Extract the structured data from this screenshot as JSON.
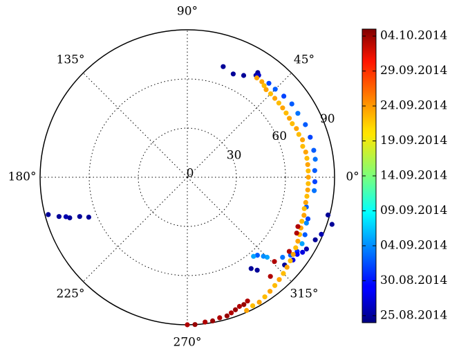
{
  "chart_data": {
    "type": "scatter",
    "projection": "polar",
    "angle_unit": "degrees",
    "theta_tick_labels": [
      "0°",
      "45°",
      "90°",
      "135°",
      "180°",
      "225°",
      "270°",
      "315°"
    ],
    "theta_ticks": [
      0,
      45,
      90,
      135,
      180,
      225,
      270,
      315
    ],
    "r_tick_labels": [
      "0",
      "30",
      "60",
      "90"
    ],
    "r_ticks": [
      0,
      30,
      60,
      90
    ],
    "r_lim": [
      0,
      90
    ],
    "grid": true,
    "colorbar": {
      "colormap": "jet",
      "position": "right",
      "tick_labels": [
        "25.08.2014",
        "30.08.2014",
        "04.09.2014",
        "09.09.2014",
        "14.09.2014",
        "19.09.2014",
        "24.09.2014",
        "29.09.2014",
        "04.10.2014"
      ],
      "tick_values": [
        "2014-08-25",
        "2014-08-30",
        "2014-09-04",
        "2014-09-09",
        "2014-09-14",
        "2014-09-19",
        "2014-09-24",
        "2014-09-29",
        "2014-10-04"
      ],
      "range": [
        "2014-08-24",
        "2014-10-05"
      ]
    },
    "points": [
      {
        "theta": 195,
        "r": 88,
        "date": "2014-08-25"
      },
      {
        "theta": 197,
        "r": 82,
        "date": "2014-08-25"
      },
      {
        "theta": 199,
        "r": 76,
        "date": "2014-08-25"
      },
      {
        "theta": 200,
        "r": 70,
        "date": "2014-08-25"
      },
      {
        "theta": 202,
        "r": 65,
        "date": "2014-08-25"
      },
      {
        "theta": 198,
        "r": 78,
        "date": "2014-08-26"
      },
      {
        "theta": 72,
        "r": 71,
        "date": "2014-08-25"
      },
      {
        "theta": 66,
        "r": 69,
        "date": "2014-08-25"
      },
      {
        "theta": 61,
        "r": 71,
        "date": "2014-08-25"
      },
      {
        "theta": 56,
        "r": 77,
        "date": "2014-08-25"
      },
      {
        "theta": 56,
        "r": 75,
        "date": "2014-08-26"
      },
      {
        "theta": 55,
        "r": 76,
        "date": "2014-08-27"
      },
      {
        "theta": 49,
        "r": 76,
        "date": "2014-09-01"
      },
      {
        "theta": 45,
        "r": 76,
        "date": "2014-09-02"
      },
      {
        "theta": 40,
        "r": 77,
        "date": "2014-09-01"
      },
      {
        "theta": 35,
        "r": 78,
        "date": "2014-09-02"
      },
      {
        "theta": 30,
        "r": 78,
        "date": "2014-09-03"
      },
      {
        "theta": 24,
        "r": 79,
        "date": "2014-09-02"
      },
      {
        "theta": 18,
        "r": 79,
        "date": "2014-09-01"
      },
      {
        "theta": 12,
        "r": 79,
        "date": "2014-09-02"
      },
      {
        "theta": 8,
        "r": 79,
        "date": "2014-09-03"
      },
      {
        "theta": 3,
        "r": 78,
        "date": "2014-09-02"
      },
      {
        "theta": -2,
        "r": 78,
        "date": "2014-09-01"
      },
      {
        "theta": -6,
        "r": 78,
        "date": "2014-09-03"
      },
      {
        "theta": -14,
        "r": 75,
        "date": "2014-09-02"
      },
      {
        "theta": -19,
        "r": 78,
        "date": "2014-09-01"
      },
      {
        "theta": -21,
        "r": 78,
        "date": "2014-09-04"
      },
      {
        "theta": -26,
        "r": 80,
        "date": "2014-09-02"
      },
      {
        "theta": -30,
        "r": 81,
        "date": "2014-09-05"
      },
      {
        "theta": -34,
        "r": 81,
        "date": "2014-08-31"
      },
      {
        "theta": -38,
        "r": 82,
        "date": "2014-08-28"
      },
      {
        "theta": -42,
        "r": 80,
        "date": "2014-08-25"
      },
      {
        "theta": -15,
        "r": 89,
        "date": "2014-08-25"
      },
      {
        "theta": -18,
        "r": 93,
        "date": "2014-08-25"
      },
      {
        "theta": -23,
        "r": 89,
        "date": "2014-08-26"
      },
      {
        "theta": -26,
        "r": 87,
        "date": "2014-08-25"
      },
      {
        "theta": -31,
        "r": 85,
        "date": "2014-08-26"
      },
      {
        "theta": -33,
        "r": 84,
        "date": "2014-08-28"
      },
      {
        "theta": -35,
        "r": 82,
        "date": "2014-08-29"
      },
      {
        "theta": -37,
        "r": 79,
        "date": "2014-09-02"
      },
      {
        "theta": -40,
        "r": 76,
        "date": "2014-09-03"
      },
      {
        "theta": -45,
        "r": 69,
        "date": "2014-09-05"
      },
      {
        "theta": -46,
        "r": 67,
        "date": "2014-09-04"
      },
      {
        "theta": -48,
        "r": 64,
        "date": "2014-09-02"
      },
      {
        "theta": -50,
        "r": 63,
        "date": "2014-09-05"
      },
      {
        "theta": -55,
        "r": 68,
        "date": "2014-08-25"
      },
      {
        "theta": -53,
        "r": 71,
        "date": "2014-08-25"
      },
      {
        "theta": 55,
        "r": 74,
        "date": "2014-09-23"
      },
      {
        "theta": 52,
        "r": 74,
        "date": "2014-09-23"
      },
      {
        "theta": 50,
        "r": 73,
        "date": "2014-09-22"
      },
      {
        "theta": 48,
        "r": 72,
        "date": "2014-09-23"
      },
      {
        "theta": 45,
        "r": 72,
        "date": "2014-09-22"
      },
      {
        "theta": 42,
        "r": 72,
        "date": "2014-09-23"
      },
      {
        "theta": 39,
        "r": 72,
        "date": "2014-09-22"
      },
      {
        "theta": 36,
        "r": 72,
        "date": "2014-09-23"
      },
      {
        "theta": 33,
        "r": 72,
        "date": "2014-09-22"
      },
      {
        "theta": 30,
        "r": 72,
        "date": "2014-09-23"
      },
      {
        "theta": 27,
        "r": 72,
        "date": "2014-09-22"
      },
      {
        "theta": 24,
        "r": 73,
        "date": "2014-09-23"
      },
      {
        "theta": 21,
        "r": 73,
        "date": "2014-09-22"
      },
      {
        "theta": 18,
        "r": 74,
        "date": "2014-09-23"
      },
      {
        "theta": 15,
        "r": 73,
        "date": "2014-09-22"
      },
      {
        "theta": 12,
        "r": 74,
        "date": "2014-09-23"
      },
      {
        "theta": 9,
        "r": 74,
        "date": "2014-09-22"
      },
      {
        "theta": 6,
        "r": 74,
        "date": "2014-09-23"
      },
      {
        "theta": 3,
        "r": 74,
        "date": "2014-09-22"
      },
      {
        "theta": 0,
        "r": 74,
        "date": "2014-09-23"
      },
      {
        "theta": -3,
        "r": 74,
        "date": "2014-09-22"
      },
      {
        "theta": -6,
        "r": 74,
        "date": "2014-09-23"
      },
      {
        "theta": -9,
        "r": 74,
        "date": "2014-09-22"
      },
      {
        "theta": -12,
        "r": 74,
        "date": "2014-09-23"
      },
      {
        "theta": -15,
        "r": 74,
        "date": "2014-09-22"
      },
      {
        "theta": -18,
        "r": 75,
        "date": "2014-09-23"
      },
      {
        "theta": -21,
        "r": 75,
        "date": "2014-09-22"
      },
      {
        "theta": -24,
        "r": 76,
        "date": "2014-09-23"
      },
      {
        "theta": -27,
        "r": 77,
        "date": "2014-09-22"
      },
      {
        "theta": -30,
        "r": 78,
        "date": "2014-09-23"
      },
      {
        "theta": -33,
        "r": 79,
        "date": "2014-09-22"
      },
      {
        "theta": -36,
        "r": 80,
        "date": "2014-09-23"
      },
      {
        "theta": -39,
        "r": 81,
        "date": "2014-09-22"
      },
      {
        "theta": -42,
        "r": 82,
        "date": "2014-09-23"
      },
      {
        "theta": -45,
        "r": 83,
        "date": "2014-09-22"
      },
      {
        "theta": -48,
        "r": 84,
        "date": "2014-09-23"
      },
      {
        "theta": -51,
        "r": 85,
        "date": "2014-09-22"
      },
      {
        "theta": -54,
        "r": 86,
        "date": "2014-09-23"
      },
      {
        "theta": -57,
        "r": 87,
        "date": "2014-09-22"
      },
      {
        "theta": -60,
        "r": 88,
        "date": "2014-09-23"
      },
      {
        "theta": -63,
        "r": 88,
        "date": "2014-09-22"
      },
      {
        "theta": -66,
        "r": 89,
        "date": "2014-09-23"
      },
      {
        "theta": -24,
        "r": 74,
        "date": "2014-10-03"
      },
      {
        "theta": -27,
        "r": 75,
        "date": "2014-10-03"
      },
      {
        "theta": -36,
        "r": 77,
        "date": "2014-10-03"
      },
      {
        "theta": -44,
        "r": 74,
        "date": "2014-10-03"
      },
      {
        "theta": -50,
        "r": 79,
        "date": "2014-10-03"
      },
      {
        "theta": -64,
        "r": 84,
        "date": "2014-10-03"
      },
      {
        "theta": -66,
        "r": 85,
        "date": "2014-10-04"
      },
      {
        "theta": -68,
        "r": 85,
        "date": "2014-10-03"
      },
      {
        "theta": -70,
        "r": 86,
        "date": "2014-10-04"
      },
      {
        "theta": -72,
        "r": 87,
        "date": "2014-10-03"
      },
      {
        "theta": -74,
        "r": 88,
        "date": "2014-10-04"
      },
      {
        "theta": -77,
        "r": 88,
        "date": "2014-10-03"
      },
      {
        "theta": -80,
        "r": 89,
        "date": "2014-10-04"
      },
      {
        "theta": -83,
        "r": 89,
        "date": "2014-10-03"
      },
      {
        "theta": -87,
        "r": 90,
        "date": "2014-10-04"
      },
      {
        "theta": -90,
        "r": 90,
        "date": "2014-10-03"
      }
    ]
  }
}
